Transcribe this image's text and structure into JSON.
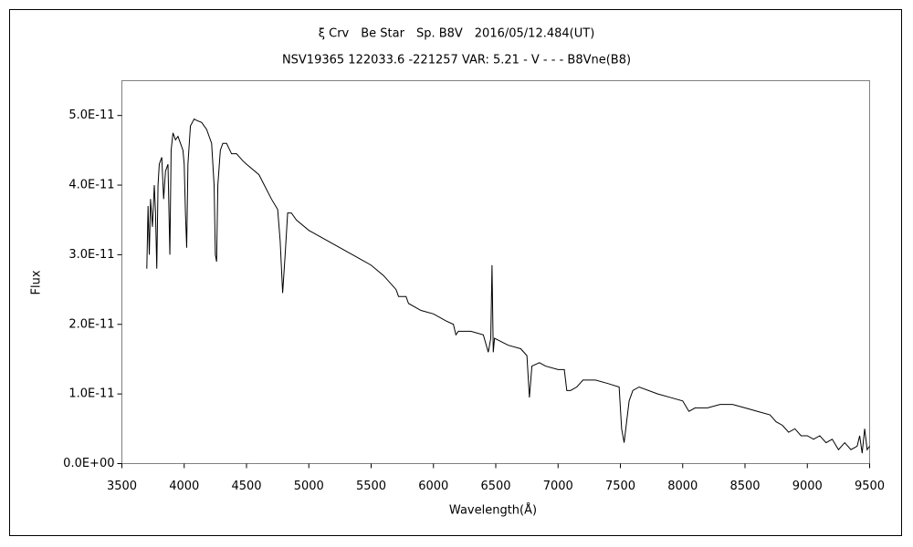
{
  "chart_data": {
    "type": "line",
    "title": "ξ Crv　Be Star　Sp. B8V　2016/05/12.484(UT)",
    "subtitle": "NSV19365 122033.6 -221257 VAR: 5.21 - V - - - B8Vne(B8)",
    "x_label": "Wavelength(Å)",
    "y_label": "Flux",
    "xlim": [
      3500,
      9500
    ],
    "xticks": [
      3500,
      4000,
      4500,
      5000,
      5500,
      6000,
      6500,
      7000,
      7500,
      8000,
      8500,
      9000,
      9500
    ],
    "ylim": [
      0,
      5.5e-11
    ],
    "yticks": [
      {
        "value": 0,
        "label": "0.0E+00"
      },
      {
        "value": 1e-11,
        "label": "1.0E-11"
      },
      {
        "value": 2e-11,
        "label": "2.0E-11"
      },
      {
        "value": 3e-11,
        "label": "3.0E-11"
      },
      {
        "value": 4e-11,
        "label": "4.0E-11"
      },
      {
        "value": 5e-11,
        "label": "5.0E-11"
      }
    ],
    "x": [
      3700,
      3710,
      3720,
      3730,
      3745,
      3760,
      3770,
      3780,
      3790,
      3800,
      3820,
      3835,
      3850,
      3870,
      3885,
      3895,
      3910,
      3930,
      3950,
      3970,
      3990,
      4000,
      4010,
      4020,
      4030,
      4050,
      4080,
      4100,
      4140,
      4180,
      4220,
      4240,
      4250,
      4260,
      4270,
      4290,
      4310,
      4340,
      4380,
      4420,
      4470,
      4500,
      4600,
      4700,
      4750,
      4770,
      4790,
      4810,
      4830,
      4860,
      4900,
      5000,
      5100,
      5200,
      5300,
      5400,
      5500,
      5600,
      5700,
      5720,
      5780,
      5800,
      5900,
      6000,
      6100,
      6160,
      6180,
      6200,
      6300,
      6400,
      6440,
      6460,
      6470,
      6480,
      6490,
      6600,
      6700,
      6750,
      6770,
      6790,
      6850,
      6900,
      7000,
      7050,
      7070,
      7100,
      7150,
      7200,
      7300,
      7400,
      7490,
      7510,
      7530,
      7550,
      7570,
      7600,
      7650,
      7800,
      7900,
      8000,
      8050,
      8100,
      8200,
      8300,
      8400,
      8500,
      8600,
      8700,
      8750,
      8800,
      8850,
      8900,
      8950,
      9000,
      9050,
      9100,
      9150,
      9200,
      9250,
      9300,
      9350,
      9400,
      9420,
      9440,
      9460,
      9480,
      9500
    ],
    "series": [
      {
        "color": "#000000",
        "values": [
          2.8e-11,
          3.7e-11,
          3e-11,
          3.8e-11,
          3.4e-11,
          4e-11,
          3.6e-11,
          2.8e-11,
          4e-11,
          4.3e-11,
          4.4e-11,
          3.8e-11,
          4.2e-11,
          4.3e-11,
          3e-11,
          4.5e-11,
          4.75e-11,
          4.65e-11,
          4.7e-11,
          4.6e-11,
          4.5e-11,
          4.3e-11,
          3.6e-11,
          3.1e-11,
          4.3e-11,
          4.85e-11,
          4.95e-11,
          4.93e-11,
          4.9e-11,
          4.8e-11,
          4.6e-11,
          4e-11,
          3e-11,
          2.9e-11,
          4e-11,
          4.5e-11,
          4.6e-11,
          4.6e-11,
          4.45e-11,
          4.45e-11,
          4.35e-11,
          4.3e-11,
          4.15e-11,
          3.8e-11,
          3.65e-11,
          3.2e-11,
          2.45e-11,
          3e-11,
          3.6e-11,
          3.6e-11,
          3.5e-11,
          3.35e-11,
          3.25e-11,
          3.15e-11,
          3.05e-11,
          2.95e-11,
          2.85e-11,
          2.7e-11,
          2.5e-11,
          2.4e-11,
          2.4e-11,
          2.3e-11,
          2.2e-11,
          2.15e-11,
          2.05e-11,
          2e-11,
          1.85e-11,
          1.9e-11,
          1.9e-11,
          1.85e-11,
          1.6e-11,
          1.8e-11,
          2.85e-11,
          1.6e-11,
          1.8e-11,
          1.7e-11,
          1.65e-11,
          1.55e-11,
          9.5e-12,
          1.4e-11,
          1.45e-11,
          1.4e-11,
          1.35e-11,
          1.35e-11,
          1.05e-11,
          1.05e-11,
          1.1e-11,
          1.2e-11,
          1.2e-11,
          1.15e-11,
          1.1e-11,
          5e-12,
          3e-12,
          6e-12,
          9e-12,
          1.05e-11,
          1.1e-11,
          1e-11,
          9.5e-12,
          9e-12,
          7.5e-12,
          8e-12,
          8e-12,
          8.5e-12,
          8.5e-12,
          8e-12,
          7.5e-12,
          7e-12,
          6e-12,
          5.5e-12,
          4.5e-12,
          5e-12,
          4e-12,
          4e-12,
          3.5e-12,
          4e-12,
          3e-12,
          3.5e-12,
          2e-12,
          3e-12,
          2e-12,
          2.5e-12,
          4e-12,
          1.5e-12,
          5e-12,
          2e-12,
          2.5e-12
        ]
      }
    ]
  }
}
